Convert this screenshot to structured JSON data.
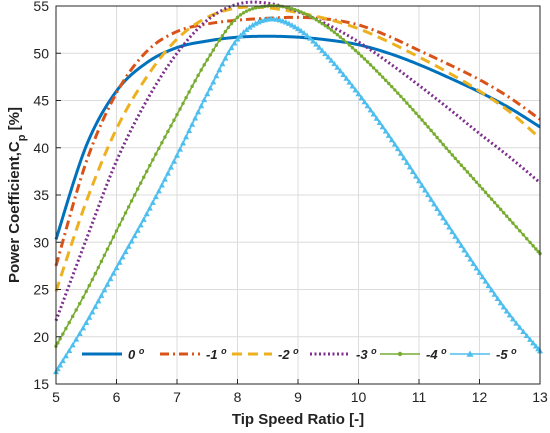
{
  "chart_data": {
    "type": "line",
    "xlabel": "Tip Speed Ratio [-]",
    "ylabel_main": "Power Coefficient,C",
    "ylabel_sub": "p",
    "ylabel_unit": " [%]",
    "xlim": [
      5,
      13
    ],
    "ylim": [
      15,
      55
    ],
    "xticks": [
      5,
      6,
      7,
      8,
      9,
      10,
      11,
      12,
      13
    ],
    "yticks": [
      15,
      20,
      25,
      30,
      35,
      40,
      45,
      50,
      55
    ],
    "grid": true,
    "legend_position": "bottom",
    "series": [
      {
        "name": "0",
        "unit": "o",
        "color": "#0072BD",
        "style": "solid",
        "marker": "none",
        "x": [
          5,
          5.5,
          6,
          6.5,
          7,
          7.5,
          8,
          8.5,
          9,
          9.5,
          10,
          10.5,
          11,
          11.5,
          12,
          12.5,
          13
        ],
        "y": [
          30.3,
          40.2,
          46.0,
          49.0,
          50.6,
          51.3,
          51.7,
          51.8,
          51.7,
          51.4,
          50.9,
          50.0,
          48.8,
          47.4,
          45.9,
          44.2,
          42.2
        ]
      },
      {
        "name": "-1",
        "unit": "o",
        "color": "#D95319",
        "style": "dashdot",
        "marker": "none",
        "x": [
          5,
          5.5,
          6,
          6.5,
          7,
          7.5,
          8,
          8.5,
          9,
          9.5,
          10,
          10.5,
          11,
          11.5,
          12,
          12.5,
          13
        ],
        "y": [
          27.5,
          38.5,
          45.8,
          50.2,
          52.3,
          53.1,
          53.5,
          53.7,
          53.8,
          53.6,
          53.0,
          51.8,
          50.3,
          48.8,
          47.2,
          45.3,
          43.0
        ]
      },
      {
        "name": "-2",
        "unit": "o",
        "color": "#EDB120",
        "style": "dashed",
        "marker": "none",
        "x": [
          5,
          5.5,
          6,
          6.5,
          7,
          7.5,
          8,
          8.5,
          9,
          9.5,
          10,
          10.5,
          11,
          11.5,
          12,
          12.5,
          13
        ],
        "y": [
          24.8,
          34.3,
          42.0,
          47.5,
          51.5,
          53.8,
          54.8,
          54.8,
          54.3,
          53.6,
          52.6,
          51.2,
          49.6,
          47.9,
          46.0,
          43.8,
          41.0
        ]
      },
      {
        "name": "-3",
        "unit": "o",
        "color": "#7E2F8E",
        "style": "dotted",
        "marker": "none",
        "x": [
          5,
          5.5,
          6,
          6.5,
          7,
          7.5,
          8,
          8.5,
          9,
          9.5,
          10,
          10.5,
          11,
          11.5,
          12,
          12.5,
          13
        ],
        "y": [
          21.7,
          30.3,
          38.6,
          45.0,
          50.0,
          53.5,
          55.2,
          55.3,
          54.4,
          53.0,
          51.2,
          49.0,
          46.6,
          44.1,
          41.5,
          39.0,
          36.3
        ]
      },
      {
        "name": "-4",
        "unit": "o",
        "color": "#77AC30",
        "style": "solid",
        "marker": "dot",
        "x": [
          5,
          5.5,
          6,
          6.5,
          7,
          7.5,
          8,
          8.5,
          9,
          9.5,
          10,
          10.5,
          11,
          11.5,
          12,
          12.5,
          13
        ],
        "y": [
          19.0,
          24.8,
          31.2,
          37.5,
          43.5,
          49.3,
          53.8,
          55.0,
          54.5,
          52.7,
          50.0,
          46.8,
          43.3,
          39.6,
          36.0,
          32.4,
          28.8
        ]
      },
      {
        "name": "-5",
        "unit": "o",
        "color": "#4DBEEE",
        "style": "solid",
        "marker": "triangle",
        "x": [
          5,
          5.5,
          6,
          6.5,
          7,
          7.5,
          8,
          8.5,
          9,
          9.5,
          10,
          10.5,
          11,
          11.5,
          12,
          12.5,
          13
        ],
        "y": [
          16.3,
          21.5,
          27.3,
          33.0,
          39.2,
          45.7,
          51.5,
          53.6,
          52.6,
          49.6,
          45.7,
          41.3,
          36.5,
          31.6,
          26.8,
          22.3,
          18.5
        ]
      }
    ]
  }
}
